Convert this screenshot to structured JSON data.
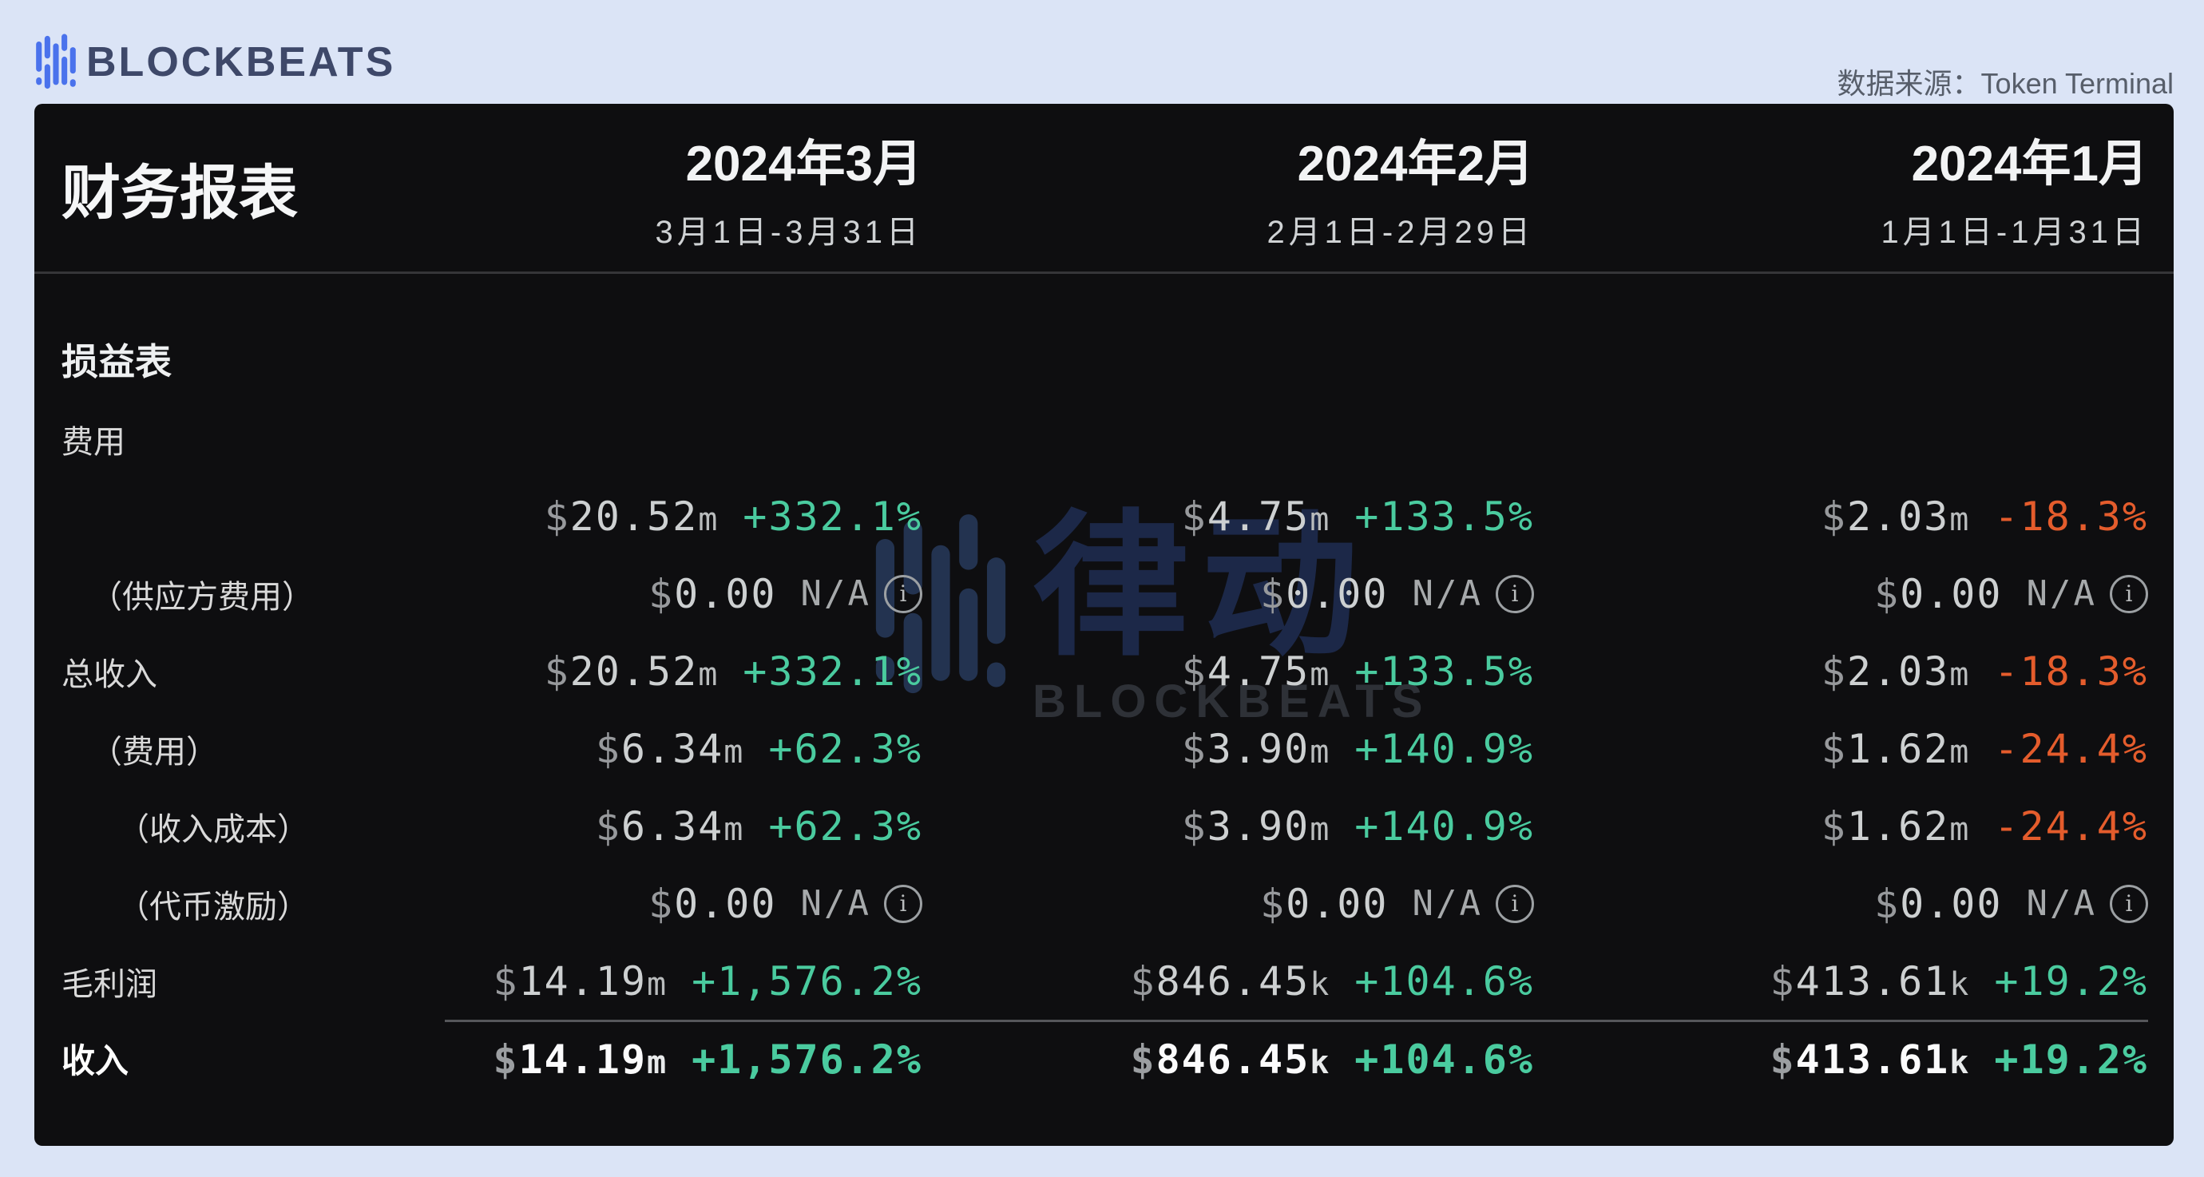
{
  "page": {
    "background": "#dbe4f6",
    "panel_background": "#0e0e10",
    "positive_color": "#4acb9f",
    "negative_color": "#e45c2c"
  },
  "topbar": {
    "logo_text": "BLOCKBEATS",
    "source_label": "数据来源：",
    "source_value": "Token Terminal"
  },
  "table": {
    "title": "财务报表",
    "columns": [
      {
        "month": "2024年3月",
        "range": "3月1日-3月31日"
      },
      {
        "month": "2024年2月",
        "range": "2月1日-2月29日"
      },
      {
        "month": "2024年1月",
        "range": "1月1日-1月31日"
      }
    ],
    "section_title": "损益表",
    "rows": [
      {
        "label": "费用",
        "indent": 0,
        "label_only": true
      },
      {
        "label": "",
        "indent": 0,
        "cells": [
          {
            "value": "$20.52m",
            "change": "+332.1%",
            "trend": "up"
          },
          {
            "value": "$4.75m",
            "change": "+133.5%",
            "trend": "up"
          },
          {
            "value": "$2.03m",
            "change": "-18.3%",
            "trend": "down"
          }
        ]
      },
      {
        "label": "（供应方费用）",
        "indent": 1,
        "cells": [
          {
            "value": "$0.00",
            "change": "N/A",
            "trend": "na"
          },
          {
            "value": "$0.00",
            "change": "N/A",
            "trend": "na"
          },
          {
            "value": "$0.00",
            "change": "N/A",
            "trend": "na"
          }
        ]
      },
      {
        "label": "总收入",
        "indent": 0,
        "cells": [
          {
            "value": "$20.52m",
            "change": "+332.1%",
            "trend": "up"
          },
          {
            "value": "$4.75m",
            "change": "+133.5%",
            "trend": "up"
          },
          {
            "value": "$2.03m",
            "change": "-18.3%",
            "trend": "down"
          }
        ]
      },
      {
        "label": "（费用）",
        "indent": 1,
        "cells": [
          {
            "value": "$6.34m",
            "change": "+62.3%",
            "trend": "up"
          },
          {
            "value": "$3.90m",
            "change": "+140.9%",
            "trend": "up"
          },
          {
            "value": "$1.62m",
            "change": "-24.4%",
            "trend": "down"
          }
        ]
      },
      {
        "label": "（收入成本）",
        "indent": 2,
        "cells": [
          {
            "value": "$6.34m",
            "change": "+62.3%",
            "trend": "up"
          },
          {
            "value": "$3.90m",
            "change": "+140.9%",
            "trend": "up"
          },
          {
            "value": "$1.62m",
            "change": "-24.4%",
            "trend": "down"
          }
        ]
      },
      {
        "label": "（代币激励）",
        "indent": 2,
        "cells": [
          {
            "value": "$0.00",
            "change": "N/A",
            "trend": "na"
          },
          {
            "value": "$0.00",
            "change": "N/A",
            "trend": "na"
          },
          {
            "value": "$0.00",
            "change": "N/A",
            "trend": "na"
          }
        ]
      },
      {
        "label": "毛利润",
        "indent": 0,
        "cells": [
          {
            "value": "$14.19m",
            "change": "+1,576.2%",
            "trend": "up"
          },
          {
            "value": "$846.45k",
            "change": "+104.6%",
            "trend": "up"
          },
          {
            "value": "$413.61k",
            "change": "+19.2%",
            "trend": "up"
          }
        ]
      },
      {
        "label": "收入",
        "indent": 0,
        "bold": true,
        "divider_above": true,
        "cells": [
          {
            "value": "$14.19m",
            "change": "+1,576.2%",
            "trend": "up"
          },
          {
            "value": "$846.45k",
            "change": "+104.6%",
            "trend": "up"
          },
          {
            "value": "$413.61k",
            "change": "+19.2%",
            "trend": "up"
          }
        ]
      }
    ]
  },
  "watermark": {
    "cn": "律动",
    "en": "BLOCKBEATS"
  },
  "chart_data": {
    "type": "table",
    "title": "财务报表",
    "source": "Token Terminal",
    "section": "损益表",
    "columns": [
      "2024年3月（3月1日-3月31日）",
      "2024年2月（2月1日-2月29日）",
      "2024年1月（1月1日-1月31日）"
    ],
    "rows": [
      {
        "label": "费用",
        "values": [
          [
            "$20.52m",
            "+332.1%"
          ],
          [
            "$4.75m",
            "+133.5%"
          ],
          [
            "$2.03m",
            "-18.3%"
          ]
        ]
      },
      {
        "label": "（供应方费用）",
        "values": [
          [
            "$0.00",
            "N/A"
          ],
          [
            "$0.00",
            "N/A"
          ],
          [
            "$0.00",
            "N/A"
          ]
        ]
      },
      {
        "label": "总收入",
        "values": [
          [
            "$20.52m",
            "+332.1%"
          ],
          [
            "$4.75m",
            "+133.5%"
          ],
          [
            "$2.03m",
            "-18.3%"
          ]
        ]
      },
      {
        "label": "（费用）",
        "values": [
          [
            "$6.34m",
            "+62.3%"
          ],
          [
            "$3.90m",
            "+140.9%"
          ],
          [
            "$1.62m",
            "-24.4%"
          ]
        ]
      },
      {
        "label": "（收入成本）",
        "values": [
          [
            "$6.34m",
            "+62.3%"
          ],
          [
            "$3.90m",
            "+140.9%"
          ],
          [
            "$1.62m",
            "-24.4%"
          ]
        ]
      },
      {
        "label": "（代币激励）",
        "values": [
          [
            "$0.00",
            "N/A"
          ],
          [
            "$0.00",
            "N/A"
          ],
          [
            "$0.00",
            "N/A"
          ]
        ]
      },
      {
        "label": "毛利润",
        "values": [
          [
            "$14.19m",
            "+1,576.2%"
          ],
          [
            "$846.45k",
            "+104.6%"
          ],
          [
            "$413.61k",
            "+19.2%"
          ]
        ]
      },
      {
        "label": "收入",
        "values": [
          [
            "$14.19m",
            "+1,576.2%"
          ],
          [
            "$846.45k",
            "+104.6%"
          ],
          [
            "$413.61k",
            "+19.2%"
          ]
        ]
      }
    ]
  }
}
